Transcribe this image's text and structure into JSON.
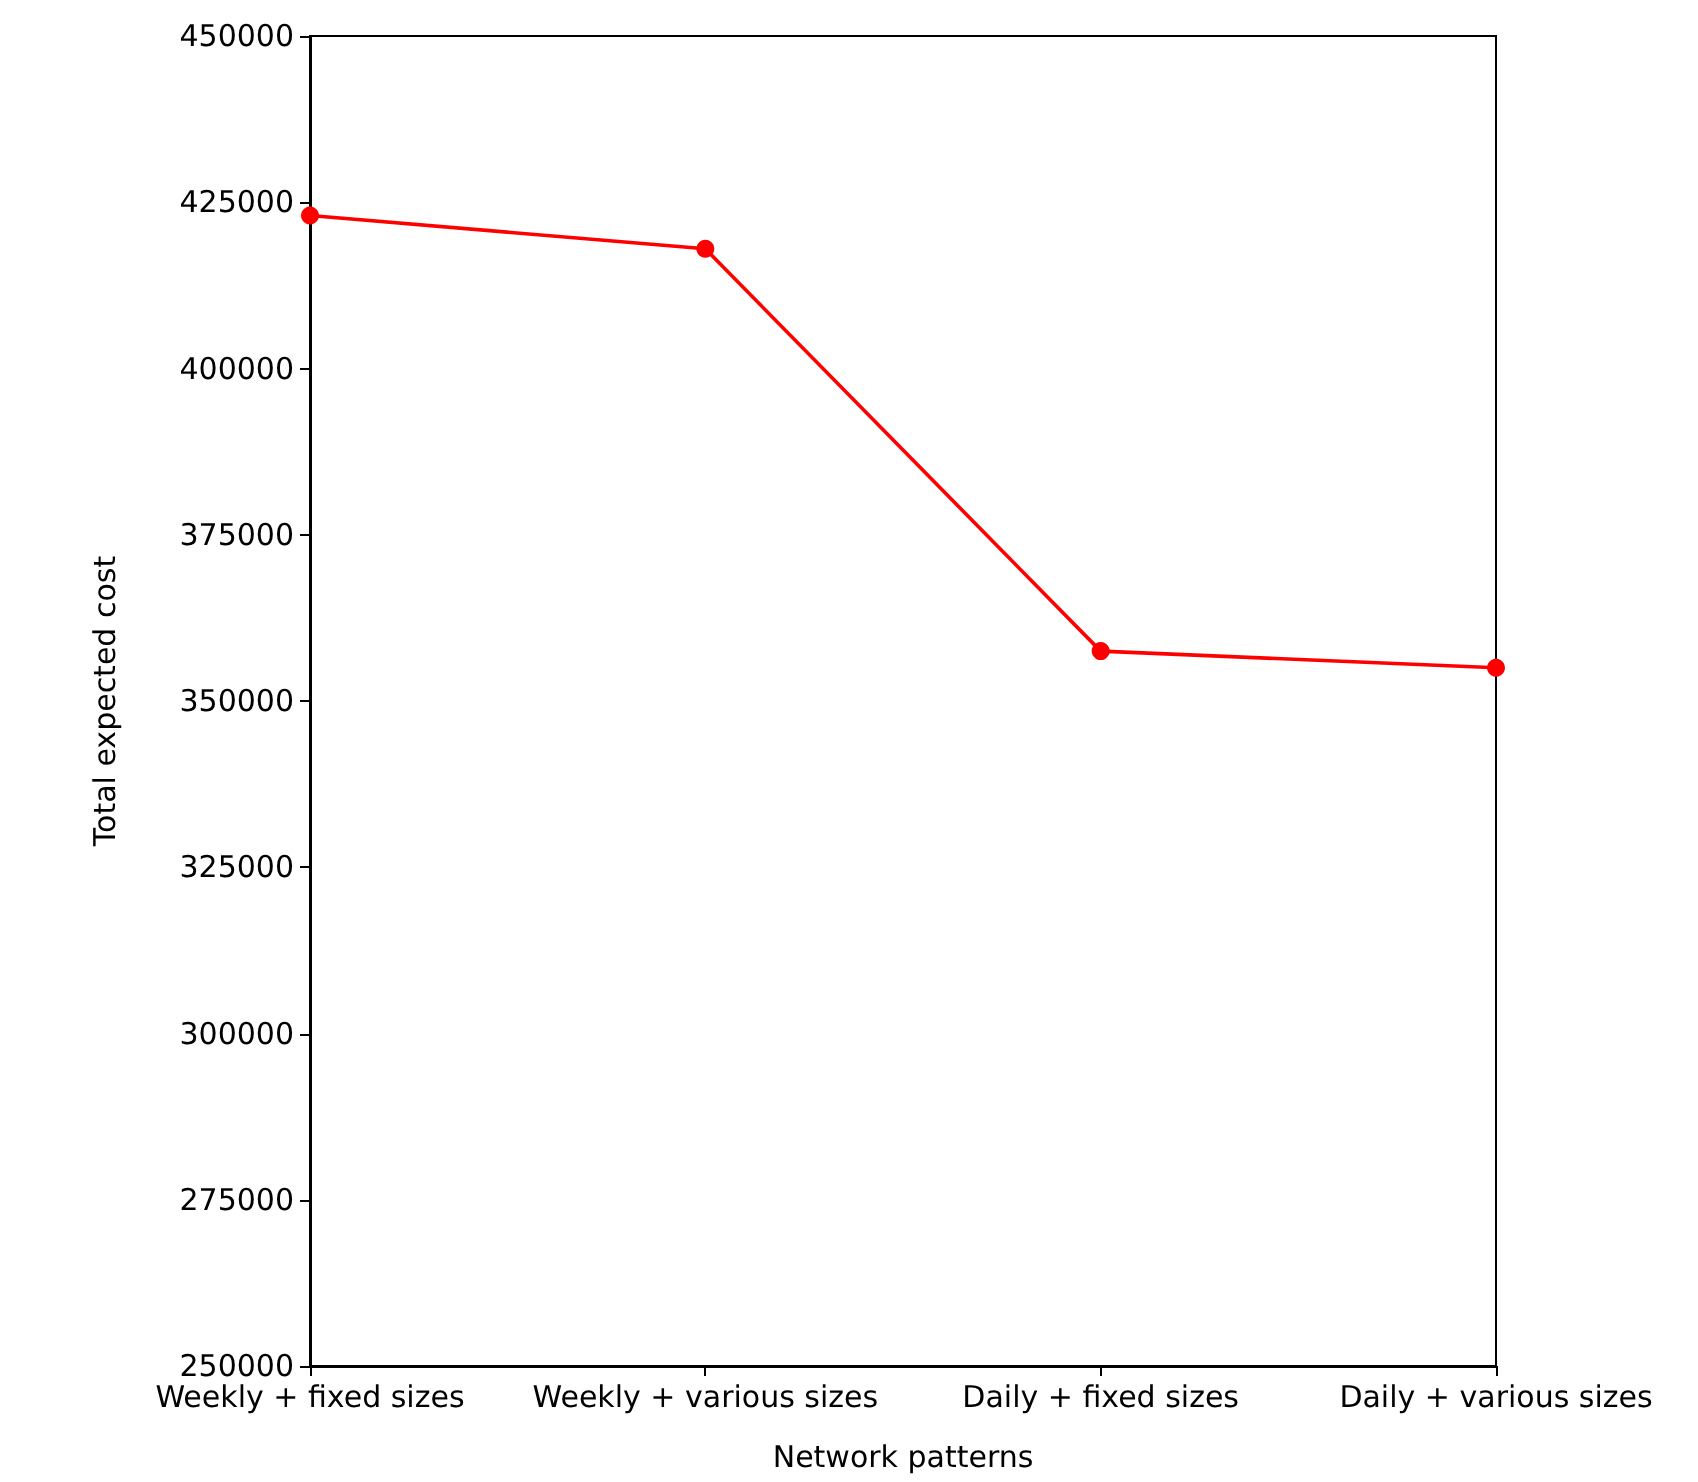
{
  "chart_data": {
    "type": "line",
    "xlabel": "Network patterns",
    "ylabel": "Total expected cost",
    "categories": [
      "Weekly + fixed sizes",
      "Weekly + various sizes",
      "Daily + fixed sizes",
      "Daily + various sizes"
    ],
    "series": [
      {
        "color": "#ff0000",
        "values": [
          423000,
          418000,
          357500,
          355000
        ]
      }
    ],
    "ylim": [
      250000,
      450000
    ],
    "yticks": [
      250000,
      275000,
      300000,
      325000,
      350000,
      375000,
      400000,
      425000,
      450000
    ],
    "grid": false,
    "marker": "circle",
    "line_style": "solid"
  }
}
